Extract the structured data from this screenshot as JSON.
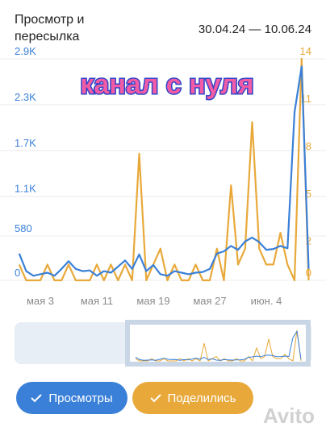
{
  "chart_data": {
    "type": "line",
    "title": "Просмотр и пересылка",
    "date_range": "30.04.24 — 10.06.24",
    "annotation": "канал с нуля",
    "watermark": "Avito",
    "categories": [
      null,
      null,
      null,
      "мая 3",
      null,
      null,
      null,
      null,
      null,
      null,
      null,
      "мая 11",
      null,
      null,
      null,
      null,
      null,
      null,
      null,
      "мая 19",
      null,
      null,
      null,
      null,
      null,
      null,
      null,
      "мая 27",
      null,
      null,
      null,
      null,
      null,
      null,
      null,
      "июн. 4",
      null,
      null,
      null,
      null,
      null,
      null
    ],
    "series": [
      {
        "name": "Просмотры",
        "color": "#3a80d8",
        "axis": "y",
        "values": [
          350,
          120,
          60,
          80,
          100,
          60,
          150,
          250,
          150,
          120,
          130,
          60,
          120,
          100,
          180,
          260,
          150,
          340,
          120,
          200,
          80,
          60,
          120,
          100,
          80,
          100,
          110,
          150,
          350,
          380,
          450,
          400,
          510,
          560,
          500,
          400,
          410,
          450,
          420,
          2200,
          2800,
          150
        ]
      },
      {
        "name": "Поделились",
        "color": "#e8a93a",
        "axis": "y2",
        "values": [
          1,
          0,
          0,
          0,
          1,
          0,
          0,
          1,
          0,
          0,
          0,
          1,
          0,
          1,
          0,
          1,
          0,
          8,
          0,
          1,
          2,
          0,
          1,
          0,
          0,
          1,
          0,
          0,
          2,
          0,
          6,
          1,
          2,
          10,
          2,
          1,
          1,
          3,
          1,
          0,
          14,
          0
        ]
      }
    ],
    "ylim": [
      0,
      2900
    ],
    "yticks": [
      0,
      580,
      {
        "value": 1100,
        "label": "1.1K"
      },
      {
        "value": 1700,
        "label": "1.7K"
      },
      {
        "value": 2300,
        "label": "2.3K"
      },
      {
        "value": 2900,
        "label": "2.9K"
      }
    ],
    "y2lim": [
      0,
      14
    ],
    "y2ticks": [
      0,
      2,
      5,
      8,
      11,
      14
    ],
    "grid": true
  }
}
